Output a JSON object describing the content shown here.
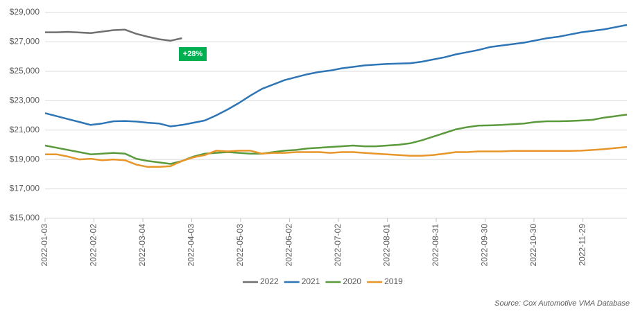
{
  "chart_data": {
    "type": "line",
    "annotation": "+28%",
    "source": "Source:  Cox Automotive VMA Database",
    "x": [
      "2022-01-03",
      "2022-01-10",
      "2022-01-17",
      "2022-01-24",
      "2022-01-31",
      "2022-02-07",
      "2022-02-14",
      "2022-02-21",
      "2022-02-28",
      "2022-03-07",
      "2022-03-14",
      "2022-03-21",
      "2022-03-28",
      "2022-04-04",
      "2022-04-11",
      "2022-04-18",
      "2022-04-25",
      "2022-05-02",
      "2022-05-09",
      "2022-05-16",
      "2022-05-23",
      "2022-05-30",
      "2022-06-06",
      "2022-06-13",
      "2022-06-20",
      "2022-06-27",
      "2022-07-04",
      "2022-07-11",
      "2022-07-18",
      "2022-07-25",
      "2022-08-01",
      "2022-08-08",
      "2022-08-15",
      "2022-08-22",
      "2022-08-29",
      "2022-09-05",
      "2022-09-12",
      "2022-09-19",
      "2022-09-26",
      "2022-10-03",
      "2022-10-10",
      "2022-10-17",
      "2022-10-24",
      "2022-10-31",
      "2022-11-07",
      "2022-11-14",
      "2022-11-21",
      "2022-11-28",
      "2022-12-05",
      "2022-12-12",
      "2022-12-19",
      "2022-12-26"
    ],
    "xlim": [
      "2022-01-03",
      "2022-12-26"
    ],
    "xticks": [
      "2022-01-03",
      "2022-02-02",
      "2022-03-04",
      "2022-04-03",
      "2022-05-03",
      "2022-06-02",
      "2022-07-02",
      "2022-08-01",
      "2022-08-31",
      "2022-09-30",
      "2022-10-30",
      "2022-11-29"
    ],
    "ylim": [
      15000,
      29000
    ],
    "yticks": [
      {
        "value": 15000,
        "label": "$15,000"
      },
      {
        "value": 17000,
        "label": "$17,000"
      },
      {
        "value": 19000,
        "label": "$19,000"
      },
      {
        "value": 21000,
        "label": "$21,000"
      },
      {
        "value": 23000,
        "label": "$23,000"
      },
      {
        "value": 25000,
        "label": "$25,000"
      },
      {
        "value": 27000,
        "label": "$27,000"
      },
      {
        "value": 29000,
        "label": "$29,000"
      }
    ],
    "grid": true,
    "legend": "bottom",
    "series": [
      {
        "name": "2022",
        "color": "#707070",
        "values": [
          27650,
          27650,
          27680,
          27640,
          27600,
          27700,
          27800,
          27830,
          27550,
          27350,
          27180,
          27080,
          27250,
          null,
          null,
          null,
          null,
          null,
          null,
          null,
          null,
          null,
          null,
          null,
          null,
          null,
          null,
          null,
          null,
          null,
          null,
          null,
          null,
          null,
          null,
          null,
          null,
          null,
          null,
          null,
          null,
          null,
          null,
          null,
          null,
          null,
          null,
          null,
          null,
          null,
          null,
          null
        ]
      },
      {
        "name": "2021",
        "color": "#2e75b6",
        "values": [
          22150,
          21950,
          21750,
          21550,
          21350,
          21450,
          21600,
          21620,
          21580,
          21500,
          21450,
          21250,
          21350,
          21500,
          21650,
          22000,
          22400,
          22850,
          23350,
          23800,
          24100,
          24400,
          24600,
          24800,
          24950,
          25050,
          25200,
          25300,
          25400,
          25450,
          25500,
          25520,
          25550,
          25650,
          25800,
          25950,
          26150,
          26300,
          26450,
          26650,
          26750,
          26850,
          26950,
          27100,
          27250,
          27350,
          27500,
          27650,
          27750,
          27850,
          28000,
          28150
        ]
      },
      {
        "name": "2020",
        "color": "#5b9a3c",
        "values": [
          19950,
          19800,
          19650,
          19500,
          19350,
          19400,
          19450,
          19400,
          19050,
          18900,
          18800,
          18700,
          18900,
          19200,
          19400,
          19450,
          19500,
          19450,
          19400,
          19400,
          19500,
          19600,
          19650,
          19750,
          19800,
          19850,
          19900,
          19950,
          19900,
          19900,
          19950,
          20000,
          20100,
          20300,
          20550,
          20800,
          21050,
          21200,
          21300,
          21320,
          21350,
          21400,
          21450,
          21550,
          21600,
          21600,
          21620,
          21650,
          21700,
          21850,
          21950,
          22050
        ]
      },
      {
        "name": "2019",
        "color": "#e8952a",
        "values": [
          19350,
          19350,
          19200,
          19000,
          19050,
          18950,
          19000,
          18950,
          18650,
          18500,
          18500,
          18550,
          18900,
          19150,
          19300,
          19600,
          19550,
          19600,
          19600,
          19400,
          19450,
          19450,
          19500,
          19500,
          19500,
          19450,
          19500,
          19500,
          19450,
          19400,
          19350,
          19300,
          19250,
          19250,
          19300,
          19400,
          19500,
          19500,
          19550,
          19550,
          19550,
          19580,
          19580,
          19580,
          19580,
          19580,
          19580,
          19600,
          19650,
          19700,
          19780,
          19850
        ]
      }
    ]
  }
}
